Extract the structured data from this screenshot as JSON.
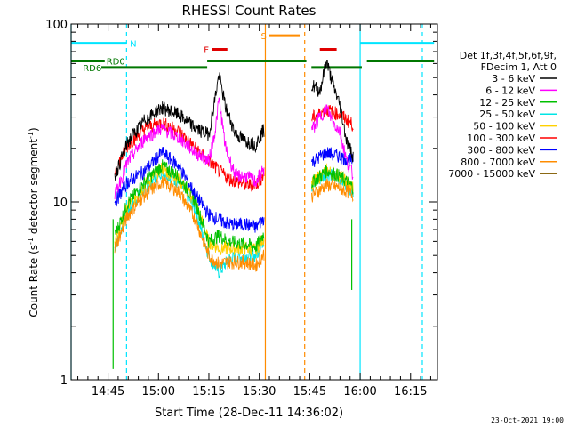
{
  "chart_data": {
    "type": "line",
    "title": "RHESSI Count Rates",
    "xlabel": "Start Time (28-Dec-11 14:36:02)",
    "ylabel_main": "Count Rate (s",
    "ylabel_sup1": "-1",
    "ylabel_mid": " detector segment",
    "ylabel_sup2": "-1",
    "ylabel_end": ")",
    "yscale": "log",
    "ylim": [
      1,
      100
    ],
    "yticks": [
      {
        "v": 1,
        "label": "1"
      },
      {
        "v": 10,
        "label": "10"
      },
      {
        "v": 100,
        "label": "100"
      }
    ],
    "xlim_min": [
      -2,
      107
    ],
    "xticks": [
      {
        "m": 9,
        "label": "14:45"
      },
      {
        "m": 24,
        "label": "15:00"
      },
      {
        "m": 39,
        "label": "15:15"
      },
      {
        "m": 54,
        "label": "15:30"
      },
      {
        "m": 69,
        "label": "15:45"
      },
      {
        "m": 84,
        "label": "16:00"
      },
      {
        "m": 99,
        "label": "16:15"
      }
    ],
    "legend_header": [
      "Det 1f,3f,4f,5f,6f,9f,",
      "FDecim 1, Att 0"
    ],
    "series": [
      {
        "name": "3 - 6 keV",
        "color": "#000000",
        "values": [
          [
            11,
            14
          ],
          [
            15,
            22
          ],
          [
            20,
            29
          ],
          [
            25,
            34
          ],
          [
            30,
            31
          ],
          [
            35,
            26
          ],
          [
            39,
            24
          ],
          [
            41,
            40
          ],
          [
            42,
            52
          ],
          [
            44,
            34
          ],
          [
            47,
            24
          ],
          [
            50,
            22
          ],
          [
            53,
            21
          ],
          [
            55,
            25
          ],
          [
            70,
            45
          ],
          [
            72,
            42
          ],
          [
            74,
            62
          ],
          [
            76,
            45
          ],
          [
            78,
            35
          ],
          [
            80,
            22
          ],
          [
            82,
            18
          ]
        ]
      },
      {
        "name": "6 - 12 keV",
        "color": "#ff00ff",
        "values": [
          [
            11,
            11
          ],
          [
            15,
            17
          ],
          [
            20,
            23
          ],
          [
            25,
            26
          ],
          [
            30,
            23
          ],
          [
            35,
            19
          ],
          [
            39,
            17
          ],
          [
            41,
            26
          ],
          [
            42,
            38
          ],
          [
            44,
            20
          ],
          [
            47,
            14
          ],
          [
            50,
            14
          ],
          [
            53,
            13
          ],
          [
            55,
            15
          ],
          [
            70,
            26
          ],
          [
            72,
            30
          ],
          [
            74,
            34
          ],
          [
            76,
            28
          ],
          [
            78,
            25
          ],
          [
            80,
            17
          ],
          [
            82,
            14
          ]
        ]
      },
      {
        "name": "12 - 25 keV",
        "color": "#00c000",
        "values": [
          [
            11,
            6.5
          ],
          [
            15,
            10
          ],
          [
            20,
            13
          ],
          [
            25,
            16
          ],
          [
            30,
            14
          ],
          [
            35,
            10
          ],
          [
            39,
            6
          ],
          [
            42,
            6.5
          ],
          [
            45,
            6
          ],
          [
            50,
            5.8
          ],
          [
            53,
            5.6
          ],
          [
            55,
            6.5
          ],
          [
            70,
            13
          ],
          [
            74,
            15
          ],
          [
            78,
            14
          ],
          [
            80,
            13
          ],
          [
            82,
            12
          ]
        ]
      },
      {
        "name": "25 - 50 keV",
        "color": "#00e5e5",
        "values": [
          [
            11,
            5.5
          ],
          [
            15,
            9
          ],
          [
            20,
            12
          ],
          [
            25,
            15
          ],
          [
            30,
            13
          ],
          [
            35,
            9
          ],
          [
            39,
            5
          ],
          [
            42,
            4
          ],
          [
            45,
            4.8
          ],
          [
            50,
            5
          ],
          [
            53,
            5
          ],
          [
            55,
            6
          ],
          [
            70,
            12.5
          ],
          [
            74,
            14.5
          ],
          [
            78,
            13.5
          ],
          [
            80,
            12.5
          ],
          [
            82,
            11.5
          ]
        ]
      },
      {
        "name": "50 - 100 keV",
        "color": "#ffd000",
        "values": [
          [
            11,
            6
          ],
          [
            15,
            9.5
          ],
          [
            20,
            12.5
          ],
          [
            25,
            15.5
          ],
          [
            30,
            13.5
          ],
          [
            35,
            10
          ],
          [
            39,
            6
          ],
          [
            42,
            5.5
          ],
          [
            45,
            5.5
          ],
          [
            50,
            5.5
          ],
          [
            53,
            5.4
          ],
          [
            55,
            6.2
          ],
          [
            70,
            13
          ],
          [
            74,
            15
          ],
          [
            78,
            14
          ],
          [
            80,
            13
          ],
          [
            82,
            12
          ]
        ]
      },
      {
        "name": "100 - 300 keV",
        "color": "#ff0000",
        "values": [
          [
            11,
            15
          ],
          [
            15,
            21
          ],
          [
            20,
            26
          ],
          [
            25,
            28
          ],
          [
            30,
            25
          ],
          [
            35,
            20
          ],
          [
            39,
            17
          ],
          [
            42,
            15
          ],
          [
            45,
            13.5
          ],
          [
            50,
            12.5
          ],
          [
            53,
            12.5
          ],
          [
            55,
            14
          ],
          [
            70,
            30
          ],
          [
            74,
            33
          ],
          [
            78,
            31
          ],
          [
            80,
            29
          ],
          [
            82,
            27
          ]
        ]
      },
      {
        "name": "300 - 800 keV",
        "color": "#0000ff",
        "values": [
          [
            11,
            10
          ],
          [
            15,
            13
          ],
          [
            20,
            15
          ],
          [
            25,
            19
          ],
          [
            30,
            16
          ],
          [
            35,
            11
          ],
          [
            39,
            8.5
          ],
          [
            42,
            8
          ],
          [
            45,
            7.5
          ],
          [
            50,
            7.5
          ],
          [
            53,
            7.2
          ],
          [
            55,
            8
          ],
          [
            70,
            17
          ],
          [
            74,
            19
          ],
          [
            78,
            18
          ],
          [
            80,
            17.5
          ],
          [
            82,
            17
          ]
        ]
      },
      {
        "name": "800 - 7000 keV",
        "color": "#ff8c00",
        "values": [
          [
            11,
            5.5
          ],
          [
            15,
            8.5
          ],
          [
            20,
            11
          ],
          [
            25,
            13
          ],
          [
            30,
            11.5
          ],
          [
            35,
            8
          ],
          [
            39,
            5
          ],
          [
            42,
            4.5
          ],
          [
            45,
            4.6
          ],
          [
            50,
            4.6
          ],
          [
            53,
            4.4
          ],
          [
            55,
            5
          ],
          [
            70,
            11
          ],
          [
            74,
            12.5
          ],
          [
            78,
            12
          ],
          [
            80,
            11.5
          ],
          [
            82,
            11
          ]
        ]
      },
      {
        "name": "7000 - 15000 keV",
        "color": "#8b6914",
        "values": []
      }
    ],
    "gaps": [
      [
        55.5,
        69.5
      ]
    ],
    "start_marks": [
      {
        "m": 10.5,
        "low": 1.15
      },
      {
        "m": 81.5,
        "low": 3.2
      }
    ],
    "bars": [
      {
        "label": "N",
        "color": "#00e5ff",
        "y": 78,
        "segments": [
          [
            -2,
            14.5
          ],
          [
            84,
            106
          ]
        ],
        "label_m": 15.5
      },
      {
        "label": "RD0",
        "color": "#007700",
        "y": 62,
        "segments": [
          [
            -2,
            8
          ]
        ],
        "label_m": 8.5
      },
      {
        "label": "RD6",
        "color": "#007700",
        "y": 57,
        "segments": [
          [
            7,
            38.5
          ]
        ],
        "label_m": 1.5
      },
      {
        "label": "",
        "color": "#007700",
        "y": 62,
        "segments": [
          [
            38.5,
            68
          ],
          [
            86,
            106
          ]
        ]
      },
      {
        "label": "",
        "color": "#007700",
        "y": 57,
        "segments": [
          [
            69.5,
            84.5
          ]
        ]
      },
      {
        "label": "F",
        "color": "#e00000",
        "y": 72,
        "segments": [
          [
            40,
            44.5
          ],
          [
            72,
            77
          ]
        ],
        "label_m": 37.5
      },
      {
        "label": "S",
        "color": "#ff8c00",
        "y": 86,
        "segments": [
          [
            57,
            66
          ]
        ],
        "label_m": 54.5
      }
    ],
    "vlines": [
      {
        "m": -2,
        "color": "#00e5ff",
        "dash": false
      },
      {
        "m": 14.5,
        "color": "#00e5ff",
        "dash": true
      },
      {
        "m": 55.8,
        "color": "#ff8c00",
        "dash": false
      },
      {
        "m": 67.5,
        "color": "#ff8c00",
        "dash": true
      },
      {
        "m": 84,
        "color": "#00e5ff",
        "dash": false
      },
      {
        "m": 102.5,
        "color": "#00e5ff",
        "dash": true
      }
    ]
  },
  "timestamp": "23-Oct-2021 19:00"
}
